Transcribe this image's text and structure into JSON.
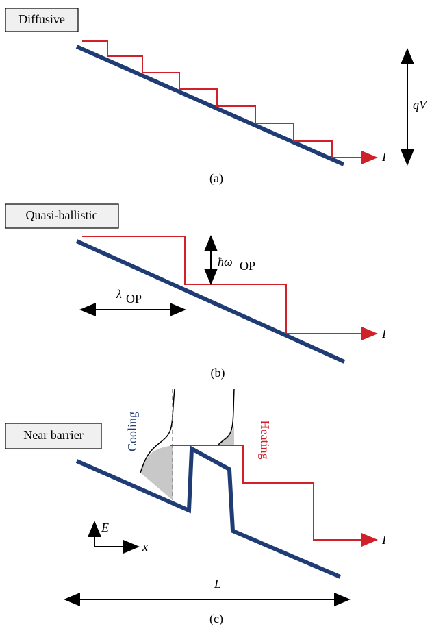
{
  "panels": [
    {
      "label": "Diffusive",
      "voltage": "qV",
      "current": "I",
      "caption": "(a)"
    },
    {
      "label": "Quasi-ballistic",
      "energy_symbol": "ħω",
      "energy_subscript": "OP",
      "length_symbol": "λ",
      "length_subscript": "OP",
      "current": "I",
      "caption": "(b)"
    },
    {
      "label": "Near barrier",
      "cooling": "Cooling",
      "heating": "Heating",
      "current": "I",
      "energy_axis": "E",
      "position_axis": "x",
      "length": "L",
      "caption": "(c)"
    }
  ]
}
